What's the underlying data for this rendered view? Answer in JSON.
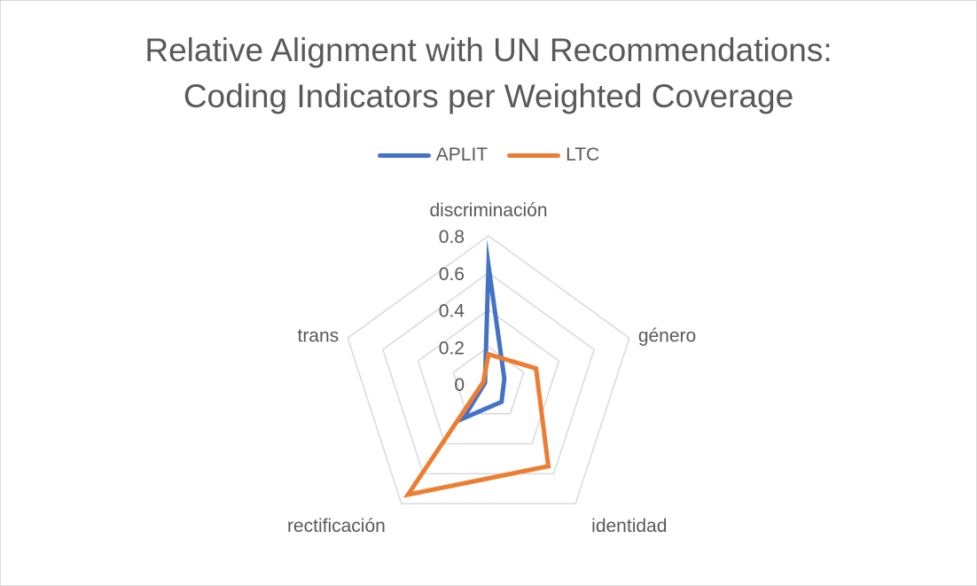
{
  "chart_data": {
    "type": "radar",
    "title_lines": [
      "Relative Alignment with UN Recommendations:",
      "Coding Indicators per Weighted Coverage"
    ],
    "categories": [
      "discriminación",
      "género",
      "identidad",
      "rectificación",
      "trans"
    ],
    "rlim": [
      0,
      0.8
    ],
    "ticks": [
      0,
      0.2,
      0.4,
      0.6,
      0.8
    ],
    "tick_labels": [
      "0",
      "0.2",
      "0.4",
      "0.6",
      "0.8"
    ],
    "grid": true,
    "legend_position": "top",
    "series": [
      {
        "name": "APLIT",
        "color": "#4472C4",
        "values": [
          0.64,
          0.09,
          0.12,
          0.23,
          0.02
        ]
      },
      {
        "name": "LTC",
        "color": "#ED7D31",
        "values": [
          0.16,
          0.27,
          0.55,
          0.74,
          0.03
        ]
      }
    ]
  }
}
